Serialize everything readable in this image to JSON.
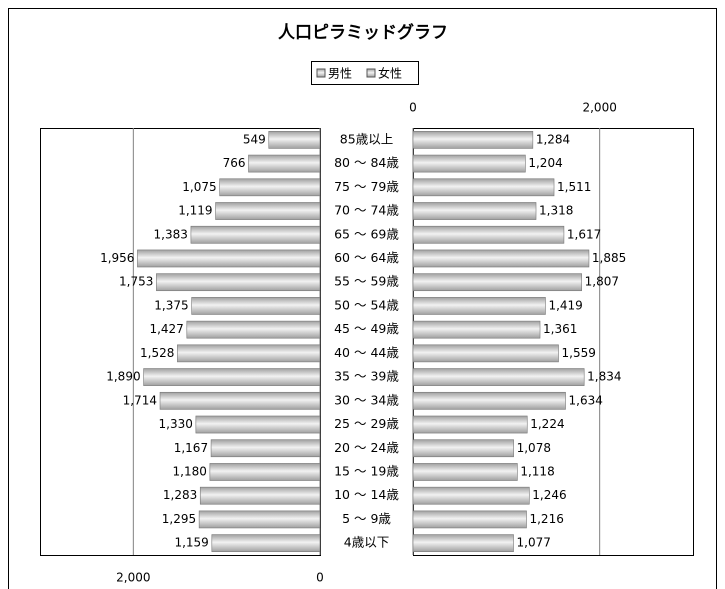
{
  "chart_data": {
    "type": "pyramid",
    "title": "人口ピラミッドグラフ",
    "categories": [
      "85歳以上",
      "80 ～ 84歳",
      "75 ～ 79歳",
      "70 ～ 74歳",
      "65 ～ 69歳",
      "60 ～ 64歳",
      "55 ～ 59歳",
      "50 ～ 54歳",
      "45 ～ 49歳",
      "40 ～ 44歳",
      "35 ～ 39歳",
      "30 ～ 34歳",
      "25 ～ 29歳",
      "20 ～ 24歳",
      "15 ～ 19歳",
      "10 ～ 14歳",
      "5 ～ 9歳",
      "4歳以下"
    ],
    "series": [
      {
        "name": "男性",
        "color": "#a0a0a0",
        "values": [
          549,
          766,
          1075,
          1119,
          1383,
          1956,
          1753,
          1375,
          1427,
          1528,
          1890,
          1714,
          1330,
          1167,
          1180,
          1283,
          1295,
          1159
        ],
        "value_labels": [
          "549",
          "766",
          "1,075",
          "1,119",
          "1,383",
          "1,956",
          "1,753",
          "1,375",
          "1,427",
          "1,528",
          "1,890",
          "1,714",
          "1,330",
          "1,167",
          "1,180",
          "1,283",
          "1,295",
          "1,159"
        ]
      },
      {
        "name": "女性",
        "color": "#a0a0a0",
        "axis": "x2",
        "values": [
          1284,
          1204,
          1511,
          1318,
          1617,
          1885,
          1807,
          1419,
          1361,
          1559,
          1834,
          1634,
          1224,
          1078,
          1118,
          1246,
          1216,
          1077
        ],
        "value_labels": [
          "1,284",
          "1,204",
          "1,511",
          "1,318",
          "1,617",
          "1,885",
          "1,807",
          "1,419",
          "1,361",
          "1,559",
          "1,834",
          "1,634",
          "1,224",
          "1,078",
          "1,118",
          "1,246",
          "1,216",
          "1,077"
        ]
      }
    ],
    "xlim": [
      0,
      3000
    ],
    "xticks": [
      0,
      {
        "value": 2000,
        "label": "2,000"
      }
    ],
    "x2lim": [
      0,
      3000
    ],
    "x2ticks": [
      0,
      {
        "value": 2000,
        "label": "2,000"
      }
    ],
    "grid": true,
    "legend": "top"
  }
}
